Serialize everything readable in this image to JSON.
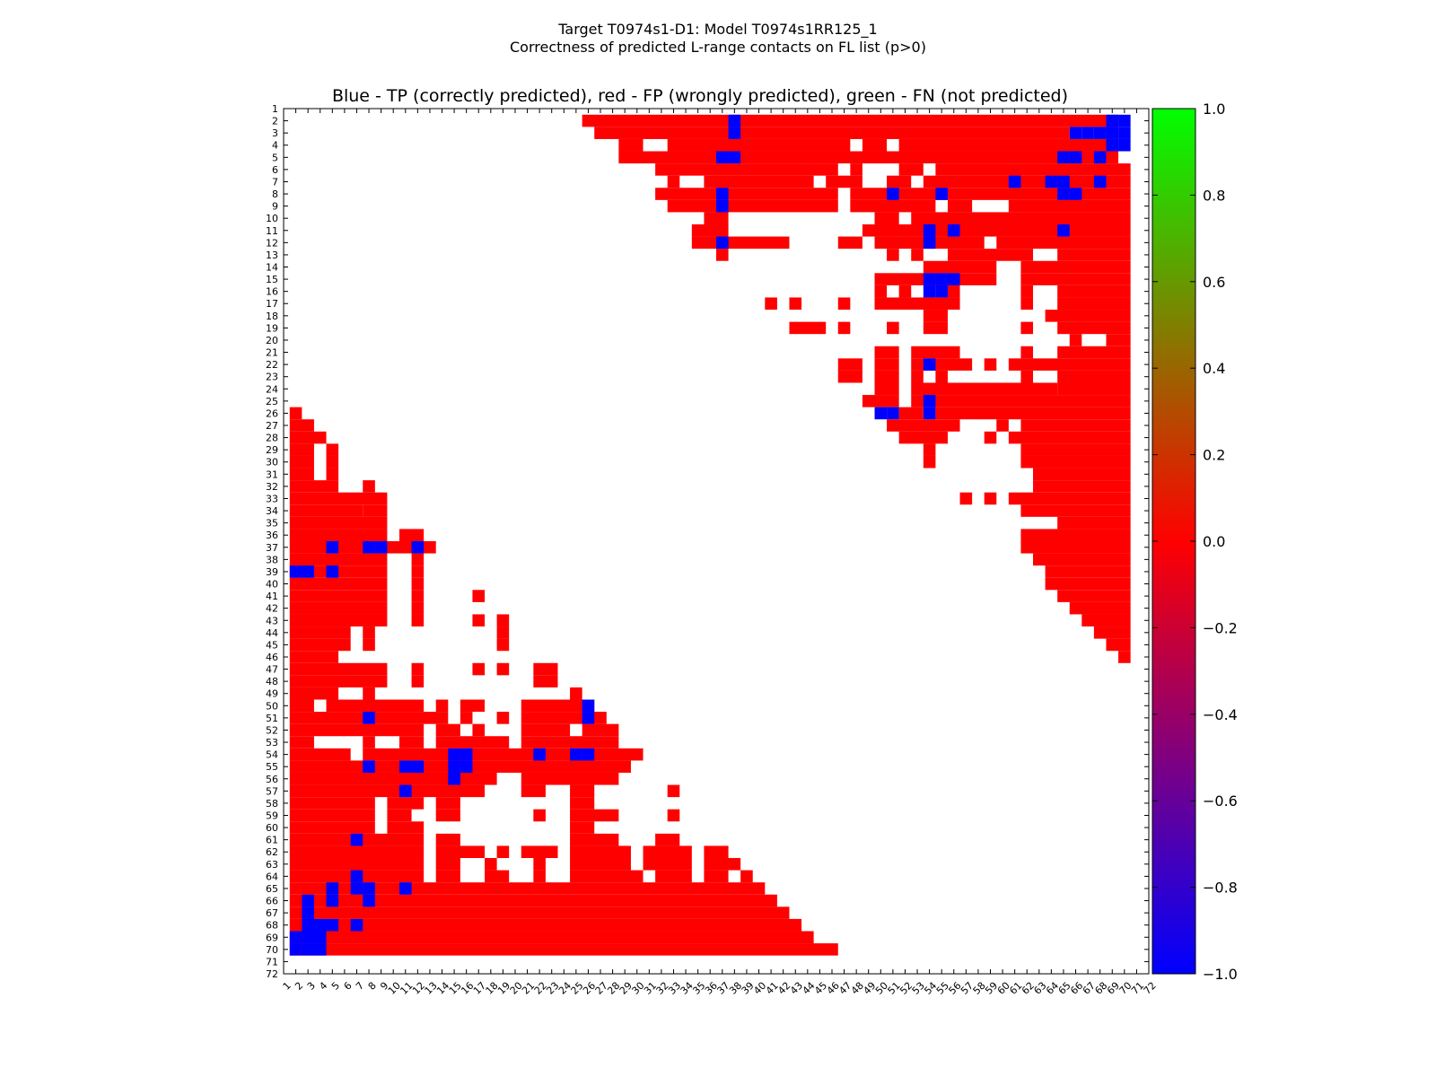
{
  "title_line1": "Target T0974s1-D1: Model T0974s1RR125_1",
  "title_line2": "Correctness of predicted L-range contacts on FL list (p>0)",
  "chart_data": {
    "type": "heatmap",
    "title": "Blue - TP (correctly predicted), red - FP (wrongly predicted), green - FN (not predicted)",
    "n": 72,
    "x_ticks": [
      1,
      2,
      3,
      4,
      5,
      6,
      7,
      8,
      9,
      10,
      11,
      12,
      13,
      14,
      15,
      16,
      17,
      18,
      19,
      20,
      21,
      22,
      23,
      24,
      25,
      26,
      27,
      28,
      29,
      30,
      31,
      32,
      33,
      34,
      35,
      36,
      37,
      38,
      39,
      40,
      41,
      42,
      43,
      44,
      45,
      46,
      47,
      48,
      49,
      50,
      51,
      52,
      53,
      54,
      55,
      56,
      57,
      58,
      59,
      60,
      61,
      62,
      63,
      64,
      65,
      66,
      67,
      68,
      69,
      70,
      71,
      72
    ],
    "y_ticks": [
      1,
      2,
      3,
      4,
      5,
      6,
      7,
      8,
      9,
      10,
      11,
      12,
      13,
      14,
      15,
      16,
      17,
      18,
      19,
      20,
      21,
      22,
      23,
      24,
      25,
      26,
      27,
      28,
      29,
      30,
      31,
      32,
      33,
      34,
      35,
      36,
      37,
      38,
      39,
      40,
      41,
      42,
      43,
      44,
      45,
      46,
      47,
      48,
      49,
      50,
      51,
      52,
      53,
      54,
      55,
      56,
      57,
      58,
      59,
      60,
      61,
      62,
      63,
      64,
      65,
      66,
      67,
      68,
      69,
      70,
      71,
      72
    ],
    "value_legend": {
      "TP": -1,
      "FP": 0,
      "FN": 1
    },
    "colorbar": {
      "range": [
        -1.0,
        1.0
      ],
      "ticks": [
        "1.0",
        "0.8",
        "0.6",
        "0.4",
        "0.2",
        "0.0",
        "−0.2",
        "−0.4",
        "−0.6",
        "−0.8",
        "−1.0"
      ],
      "colors": [
        "#0000ff",
        "#ff0000",
        "#00ff00"
      ]
    },
    "fp_rows": {
      "2": [
        [
          26,
          69
        ]
      ],
      "3": [
        [
          27,
          65
        ]
      ],
      "4": [
        [
          29,
          30
        ],
        [
          33,
          47
        ],
        [
          49,
          50
        ],
        [
          52,
          69
        ]
      ],
      "5": [
        [
          29,
          69
        ]
      ],
      "6": [
        [
          32,
          46
        ],
        [
          48,
          48
        ],
        [
          52,
          53
        ],
        [
          55,
          70
        ]
      ],
      "7": [
        [
          33,
          33
        ],
        [
          36,
          44
        ],
        [
          46,
          48
        ],
        [
          51,
          52
        ],
        [
          54,
          70
        ]
      ],
      "8": [
        [
          32,
          46
        ],
        [
          48,
          70
        ]
      ],
      "9": [
        [
          33,
          46
        ],
        [
          48,
          54
        ],
        [
          56,
          57
        ],
        [
          61,
          70
        ]
      ],
      "10": [
        [
          36,
          37
        ],
        [
          50,
          51
        ],
        [
          53,
          70
        ]
      ],
      "11": [
        [
          35,
          37
        ],
        [
          49,
          70
        ]
      ],
      "12": [
        [
          35,
          42
        ],
        [
          47,
          48
        ],
        [
          50,
          58
        ],
        [
          60,
          70
        ]
      ],
      "13": [
        [
          37,
          37
        ],
        [
          51,
          51
        ],
        [
          53,
          53
        ],
        [
          56,
          62
        ],
        [
          65,
          70
        ]
      ],
      "14": [
        [
          54,
          59
        ],
        [
          62,
          70
        ]
      ],
      "15": [
        [
          50,
          59
        ],
        [
          62,
          70
        ]
      ],
      "16": [
        [
          50,
          50
        ],
        [
          52,
          52
        ],
        [
          56,
          56
        ],
        [
          62,
          62
        ],
        [
          65,
          70
        ]
      ],
      "17": [
        [
          41,
          41
        ],
        [
          43,
          43
        ],
        [
          47,
          47
        ],
        [
          50,
          56
        ],
        [
          62,
          62
        ],
        [
          65,
          70
        ]
      ],
      "18": [
        [
          54,
          55
        ],
        [
          64,
          70
        ]
      ],
      "19": [
        [
          43,
          45
        ],
        [
          47,
          47
        ],
        [
          51,
          51
        ],
        [
          54,
          55
        ],
        [
          62,
          62
        ],
        [
          65,
          70
        ]
      ],
      "20": [
        [
          66,
          66
        ],
        [
          69,
          70
        ]
      ],
      "21": [
        [
          50,
          51
        ],
        [
          53,
          56
        ],
        [
          62,
          62
        ],
        [
          65,
          70
        ]
      ],
      "22": [
        [
          47,
          48
        ],
        [
          50,
          51
        ],
        [
          53,
          57
        ],
        [
          59,
          59
        ],
        [
          61,
          70
        ]
      ],
      "23": [
        [
          47,
          48
        ],
        [
          50,
          51
        ],
        [
          53,
          53
        ],
        [
          55,
          55
        ],
        [
          62,
          62
        ],
        [
          65,
          70
        ]
      ],
      "24": [
        [
          50,
          51
        ],
        [
          53,
          64
        ],
        [
          65,
          70
        ]
      ],
      "25": [
        [
          49,
          51
        ],
        [
          53,
          70
        ]
      ],
      "26": [
        [
          52,
          53
        ],
        [
          55,
          70
        ]
      ],
      "27": [
        [
          2,
          3
        ],
        [
          51,
          56
        ],
        [
          60,
          60
        ],
        [
          62,
          70
        ]
      ],
      "28": [
        [
          52,
          55
        ],
        [
          59,
          59
        ],
        [
          61,
          70
        ]
      ],
      "29": [
        [
          54,
          54
        ],
        [
          62,
          70
        ]
      ],
      "30": [
        [
          54,
          54
        ],
        [
          62,
          70
        ]
      ],
      "31": [
        [
          63,
          70
        ]
      ],
      "32": [
        [
          63,
          70
        ]
      ],
      "33": [
        [
          57,
          57
        ],
        [
          59,
          59
        ],
        [
          61,
          70
        ]
      ],
      "34": [
        [
          62,
          70
        ]
      ],
      "35": [
        [
          65,
          70
        ]
      ],
      "36": [
        [
          62,
          70
        ]
      ],
      "37": [
        [
          62,
          70
        ]
      ],
      "38": [
        [
          63,
          70
        ]
      ],
      "39": [
        [
          64,
          70
        ]
      ],
      "40": [
        [
          64,
          70
        ]
      ],
      "41": [
        [
          65,
          70
        ]
      ],
      "42": [
        [
          66,
          70
        ]
      ],
      "43": [
        [
          67,
          70
        ]
      ],
      "44": [
        [
          68,
          70
        ]
      ],
      "45": [
        [
          69,
          70
        ]
      ],
      "46": [
        [
          70,
          70
        ]
      ],
      "26L": [
        [
          2,
          2
        ]
      ],
      "28L": [
        [
          2,
          4
        ]
      ],
      "29L": [
        [
          2,
          3
        ],
        [
          5,
          5
        ]
      ],
      "30L": [
        [
          2,
          3
        ],
        [
          5,
          5
        ]
      ],
      "31L": [
        [
          2,
          3
        ],
        [
          5,
          5
        ]
      ],
      "32L": [
        [
          2,
          5
        ],
        [
          8,
          8
        ]
      ],
      "33L": [
        [
          2,
          9
        ]
      ],
      "34L": [
        [
          2,
          7
        ],
        [
          8,
          9
        ]
      ],
      "35L": [
        [
          2,
          9
        ]
      ],
      "36L": [
        [
          2,
          9
        ],
        [
          11,
          12
        ]
      ],
      "37L": [
        [
          2,
          13
        ]
      ],
      "38L": [
        [
          2,
          9
        ],
        [
          12,
          12
        ]
      ],
      "39L": [
        [
          2,
          9
        ],
        [
          12,
          12
        ]
      ],
      "40L": [
        [
          2,
          9
        ],
        [
          12,
          12
        ]
      ],
      "41L": [
        [
          2,
          9
        ],
        [
          12,
          12
        ],
        [
          17,
          17
        ]
      ],
      "42L": [
        [
          2,
          9
        ],
        [
          12,
          12
        ]
      ],
      "43L": [
        [
          2,
          9
        ],
        [
          12,
          12
        ],
        [
          17,
          17
        ],
        [
          19,
          19
        ]
      ],
      "44L": [
        [
          2,
          6
        ],
        [
          8,
          8
        ],
        [
          19,
          19
        ]
      ],
      "45L": [
        [
          2,
          6
        ],
        [
          8,
          8
        ],
        [
          19,
          19
        ]
      ],
      "46L": [
        [
          2,
          5
        ]
      ],
      "47L": [
        [
          2,
          9
        ],
        [
          12,
          12
        ],
        [
          17,
          17
        ],
        [
          19,
          19
        ],
        [
          22,
          23
        ]
      ],
      "48L": [
        [
          2,
          9
        ],
        [
          12,
          12
        ],
        [
          22,
          23
        ]
      ],
      "49L": [
        [
          2,
          5
        ],
        [
          8,
          8
        ],
        [
          25,
          25
        ]
      ],
      "50L": [
        [
          2,
          3
        ],
        [
          5,
          12
        ],
        [
          14,
          14
        ],
        [
          16,
          17
        ],
        [
          21,
          26
        ]
      ],
      "51L": [
        [
          2,
          14
        ],
        [
          16,
          16
        ],
        [
          19,
          19
        ],
        [
          21,
          27
        ]
      ],
      "52L": [
        [
          2,
          12
        ],
        [
          14,
          15
        ],
        [
          17,
          17
        ],
        [
          21,
          24
        ],
        [
          26,
          28
        ]
      ],
      "53L": [
        [
          2,
          3
        ],
        [
          8,
          8
        ],
        [
          11,
          12
        ],
        [
          14,
          19
        ],
        [
          21,
          28
        ]
      ],
      "54L": [
        [
          2,
          6
        ],
        [
          8,
          30
        ]
      ],
      "55L": [
        [
          2,
          29
        ]
      ],
      "56L": [
        [
          2,
          18
        ],
        [
          21,
          28
        ]
      ],
      "57L": [
        [
          2,
          17
        ],
        [
          21,
          22
        ],
        [
          25,
          26
        ],
        [
          33,
          33
        ]
      ],
      "58L": [
        [
          2,
          8
        ],
        [
          10,
          12
        ],
        [
          14,
          15
        ],
        [
          25,
          26
        ]
      ],
      "59L": [
        [
          2,
          8
        ],
        [
          10,
          11
        ],
        [
          14,
          15
        ],
        [
          22,
          22
        ],
        [
          25,
          28
        ],
        [
          33,
          33
        ]
      ],
      "60L": [
        [
          2,
          8
        ],
        [
          10,
          12
        ],
        [
          25,
          26
        ]
      ],
      "61L": [
        [
          2,
          12
        ],
        [
          14,
          15
        ],
        [
          25,
          28
        ],
        [
          32,
          33
        ]
      ],
      "62L": [
        [
          2,
          12
        ],
        [
          14,
          17
        ],
        [
          19,
          19
        ],
        [
          21,
          23
        ],
        [
          25,
          29
        ],
        [
          31,
          34
        ],
        [
          36,
          37
        ]
      ],
      "63L": [
        [
          2,
          12
        ],
        [
          14,
          15
        ],
        [
          18,
          18
        ],
        [
          22,
          22
        ],
        [
          25,
          29
        ],
        [
          31,
          34
        ],
        [
          36,
          38
        ]
      ],
      "64L": [
        [
          2,
          12
        ],
        [
          14,
          15
        ],
        [
          18,
          19
        ],
        [
          22,
          22
        ],
        [
          25,
          30
        ],
        [
          32,
          34
        ],
        [
          36,
          37
        ],
        [
          39,
          39
        ]
      ],
      "65L": [
        [
          2,
          40
        ]
      ],
      "66L": [
        [
          2,
          41
        ]
      ],
      "67L": [
        [
          2,
          42
        ]
      ],
      "68L": [
        [
          2,
          43
        ]
      ],
      "69L": [
        [
          2,
          44
        ]
      ],
      "70L": [
        [
          2,
          46
        ]
      ]
    },
    "tp_cells": [
      [
        2,
        38
      ],
      [
        3,
        38
      ],
      [
        2,
        69
      ],
      [
        2,
        70
      ],
      [
        3,
        68
      ],
      [
        3,
        69
      ],
      [
        3,
        70
      ],
      [
        4,
        69
      ],
      [
        4,
        70
      ],
      [
        3,
        66
      ],
      [
        3,
        67
      ],
      [
        5,
        37
      ],
      [
        5,
        38
      ],
      [
        5,
        65
      ],
      [
        5,
        66
      ],
      [
        5,
        68
      ],
      [
        7,
        61
      ],
      [
        7,
        64
      ],
      [
        7,
        65
      ],
      [
        7,
        68
      ],
      [
        8,
        65
      ],
      [
        8,
        66
      ],
      [
        8,
        37
      ],
      [
        8,
        51
      ],
      [
        8,
        55
      ],
      [
        9,
        37
      ],
      [
        11,
        54
      ],
      [
        11,
        56
      ],
      [
        11,
        65
      ],
      [
        12,
        54
      ],
      [
        12,
        37
      ],
      [
        15,
        54
      ],
      [
        15,
        55
      ],
      [
        15,
        56
      ],
      [
        16,
        54
      ],
      [
        16,
        55
      ],
      [
        22,
        54
      ],
      [
        25,
        54
      ],
      [
        26,
        54
      ],
      [
        26,
        50
      ],
      [
        26,
        51
      ],
      [
        37,
        5
      ],
      [
        37,
        8
      ],
      [
        37,
        9
      ],
      [
        37,
        12
      ],
      [
        39,
        2
      ],
      [
        39,
        3
      ],
      [
        39,
        5
      ],
      [
        50,
        26
      ],
      [
        51,
        8
      ],
      [
        51,
        26
      ],
      [
        54,
        15
      ],
      [
        54,
        16
      ],
      [
        54,
        22
      ],
      [
        54,
        25
      ],
      [
        54,
        26
      ],
      [
        55,
        8
      ],
      [
        55,
        11
      ],
      [
        55,
        12
      ],
      [
        55,
        15
      ],
      [
        55,
        16
      ],
      [
        56,
        15
      ],
      [
        57,
        11
      ],
      [
        61,
        7
      ],
      [
        64,
        7
      ],
      [
        65,
        5
      ],
      [
        65,
        7
      ],
      [
        65,
        8
      ],
      [
        65,
        11
      ],
      [
        66,
        3
      ],
      [
        66,
        5
      ],
      [
        66,
        8
      ],
      [
        67,
        3
      ],
      [
        68,
        3
      ],
      [
        68,
        4
      ],
      [
        68,
        5
      ],
      [
        68,
        7
      ],
      [
        69,
        2
      ],
      [
        69,
        3
      ],
      [
        69,
        4
      ],
      [
        70,
        2
      ],
      [
        70,
        3
      ],
      [
        70,
        4
      ]
    ]
  }
}
